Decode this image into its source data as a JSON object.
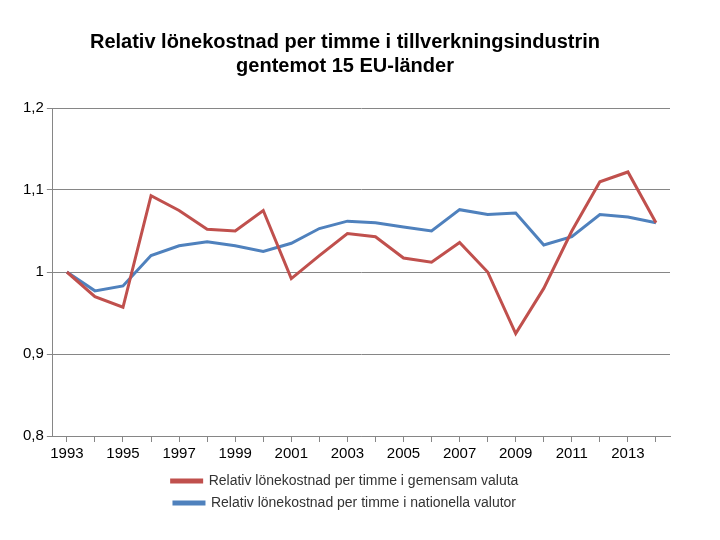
{
  "chart_data": {
    "type": "line",
    "title": [
      "Relativ lönekostnad per timme i tillverkningsindustrin",
      "gentemot 15 EU-länder"
    ],
    "categories": [
      "1993",
      null,
      "1995",
      null,
      "1997",
      null,
      "1999",
      null,
      "2001",
      null,
      "2003",
      null,
      "2005",
      null,
      "2007",
      null,
      "2009",
      null,
      "2011",
      null,
      "2013",
      null
    ],
    "series": [
      {
        "name": "Relativ lönekostnad per timme i gemensam valuta",
        "color": "#c0504d",
        "values": [
          1.0,
          0.97,
          0.957,
          1.093,
          1.075,
          1.052,
          1.05,
          1.075,
          0.992,
          1.02,
          1.047,
          1.043,
          1.017,
          1.012,
          1.036,
          1.0,
          0.925,
          0.98,
          1.05,
          1.11,
          1.122,
          1.06
        ]
      },
      {
        "name": "Relativ lönekostnad per timme i nationella valutor",
        "color": "#4f81bd",
        "values": [
          1.0,
          0.977,
          0.983,
          1.02,
          1.032,
          1.037,
          1.032,
          1.025,
          1.035,
          1.053,
          1.062,
          1.06,
          1.055,
          1.05,
          1.076,
          1.07,
          1.072,
          1.033,
          1.043,
          1.07,
          1.067,
          1.06
        ]
      }
    ],
    "ylim": [
      0.8,
      1.2
    ],
    "yticks": [
      {
        "value": 0.8,
        "label": "0,8"
      },
      {
        "value": 0.9,
        "label": "0,9"
      },
      1,
      {
        "value": 1.1,
        "label": "1,1"
      },
      {
        "value": 1.2,
        "label": "1,2"
      }
    ],
    "grid": true,
    "legend": "bottom"
  }
}
